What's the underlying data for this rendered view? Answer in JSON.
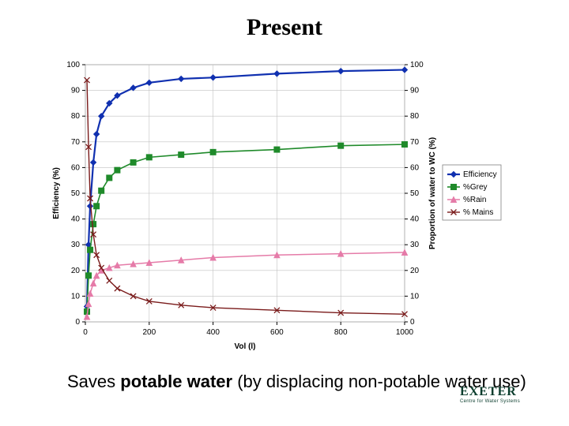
{
  "title": "Present",
  "caption": {
    "pre": "Saves ",
    "bold": "potable water",
    "post": " (by displacing non-potable water use)"
  },
  "logo": {
    "main": "EXETER",
    "sub": "Centre for Water Systems"
  },
  "chart": {
    "type": "line",
    "background_color": "#ffffff",
    "grid_color": "#c0c0c0",
    "axis_color": "#000000",
    "x": {
      "label": "Vol (l)",
      "min": 0,
      "max": 1000,
      "step": 200,
      "label_fontsize": 10,
      "tick_fontsize": 10
    },
    "y_left": {
      "label": "Efficiency (%)",
      "min": 0,
      "max": 100,
      "step": 10,
      "label_fontsize": 10,
      "tick_fontsize": 10
    },
    "y_right": {
      "label": "Proportion of water to WC (%)",
      "min": 0,
      "max": 100,
      "step": 10,
      "label_fontsize": 10,
      "tick_fontsize": 10
    },
    "legend": {
      "position": "right",
      "items": [
        "Efficiency",
        "%Grey",
        "%Rain",
        "% Mains"
      ]
    },
    "series": {
      "efficiency": {
        "label": "Efficiency",
        "color": "#1030b0",
        "marker": "diamond",
        "line_width": 2.2,
        "x": [
          5,
          10,
          15,
          25,
          35,
          50,
          75,
          100,
          150,
          200,
          300,
          400,
          600,
          800,
          1000
        ],
        "y": [
          6,
          30,
          45,
          62,
          73,
          80,
          85,
          88,
          91,
          93,
          94.5,
          95,
          96.5,
          97.5,
          98
        ]
      },
      "grey": {
        "label": "%Grey",
        "color": "#1f8a2a",
        "marker": "square",
        "line_width": 1.6,
        "x": [
          5,
          10,
          15,
          25,
          35,
          50,
          75,
          100,
          150,
          200,
          300,
          400,
          600,
          800,
          1000
        ],
        "y": [
          4,
          18,
          28,
          38,
          45,
          51,
          56,
          59,
          62,
          64,
          65,
          66,
          67,
          68.5,
          69
        ]
      },
      "rain": {
        "label": "%Rain",
        "color": "#e57ba8",
        "marker": "triangle",
        "line_width": 1.5,
        "x": [
          5,
          10,
          15,
          25,
          35,
          50,
          75,
          100,
          150,
          200,
          300,
          400,
          600,
          800,
          1000
        ],
        "y": [
          2,
          7,
          11,
          15,
          18,
          20,
          21,
          22,
          22.5,
          23,
          24,
          25,
          26,
          26.5,
          27
        ]
      },
      "mains": {
        "label": "% Mains",
        "color": "#7a1b1b",
        "marker": "x",
        "line_width": 1.4,
        "x": [
          5,
          10,
          15,
          25,
          35,
          50,
          75,
          100,
          150,
          200,
          300,
          400,
          600,
          800,
          1000
        ],
        "y": [
          94,
          68,
          48,
          34,
          26,
          21,
          16,
          13,
          10,
          8,
          6.5,
          5.5,
          4.5,
          3.5,
          3
        ]
      }
    }
  }
}
